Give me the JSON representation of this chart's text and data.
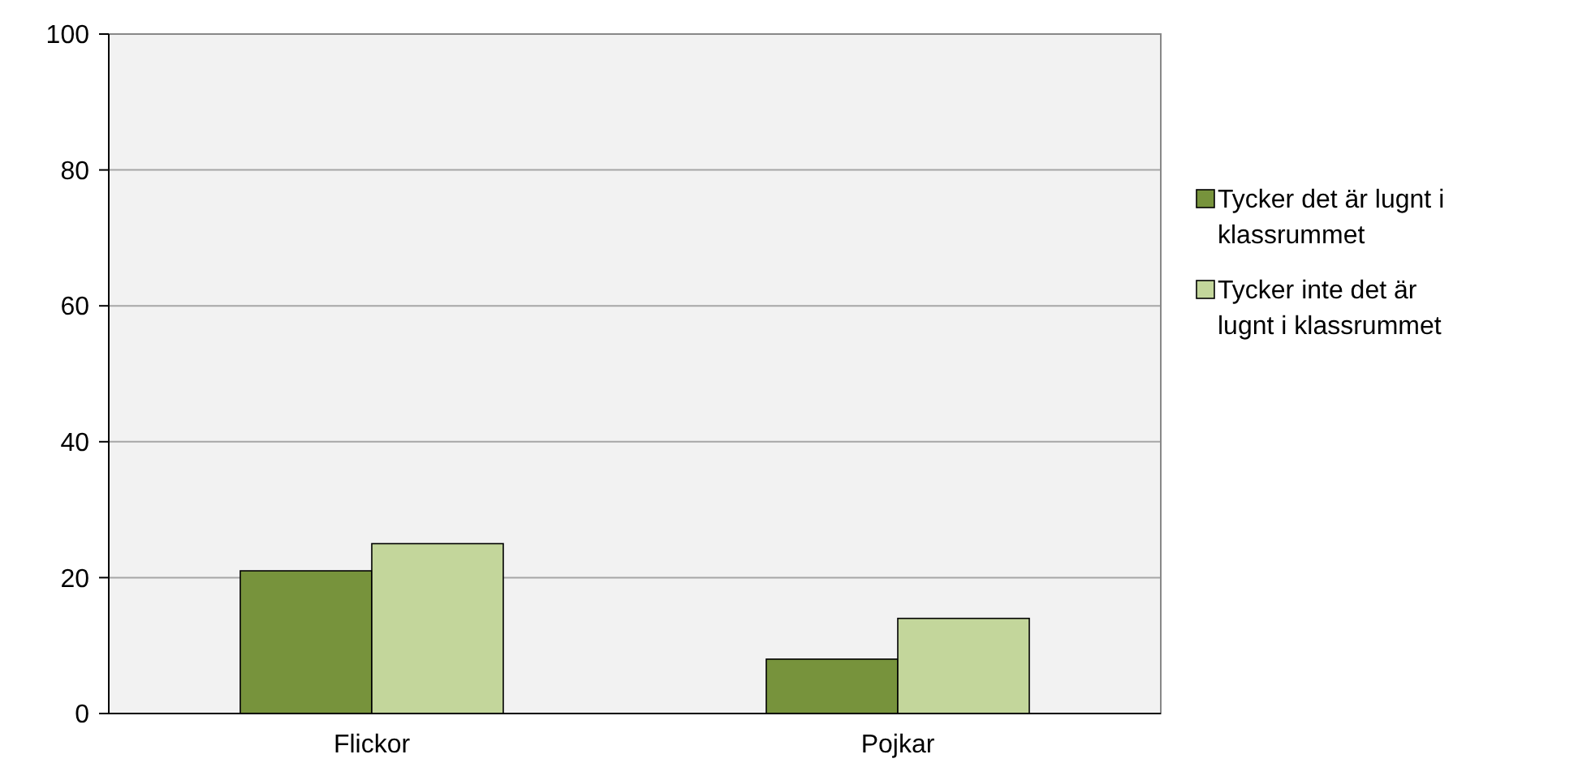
{
  "chart_data": {
    "type": "bar",
    "categories": [
      "Flickor",
      "Pojkar"
    ],
    "series": [
      {
        "name": "Tycker det är lugnt i klassrummet",
        "color": "#77933c",
        "values": [
          21,
          8
        ]
      },
      {
        "name": "Tycker inte det är lugnt i klassrummet",
        "color": "#c3d69b",
        "values": [
          25,
          14
        ]
      }
    ],
    "ylim": [
      0,
      100
    ],
    "yticks": [
      0,
      20,
      40,
      60,
      80,
      100
    ],
    "grid": "y",
    "legend": "right"
  }
}
